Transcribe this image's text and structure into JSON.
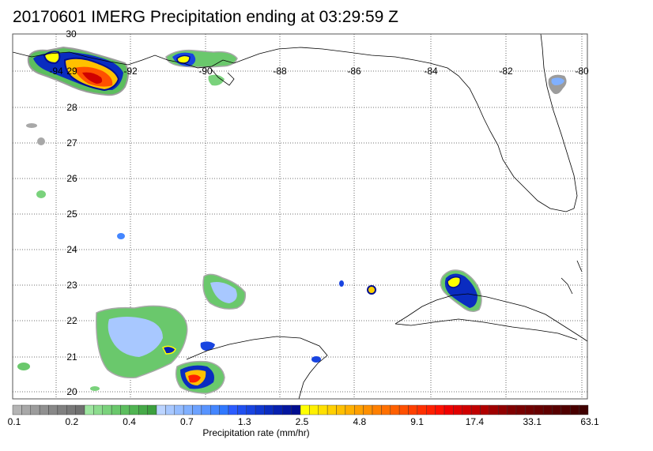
{
  "title": "20170601 IMERG Precipitation ending at 03:29:59 Z",
  "map": {
    "lon_labels": [
      "-94",
      "-92",
      "-90",
      "-88",
      "-86",
      "-84",
      "-82",
      "-80"
    ],
    "lat_labels": [
      "30",
      "29",
      "28",
      "27",
      "26",
      "25",
      "24",
      "23",
      "22",
      "21",
      "20"
    ],
    "lon_range": [
      -94.8,
      -79.8
    ],
    "lat_range": [
      19.8,
      30.0
    ],
    "grid": true
  },
  "colorbar": {
    "title": "Precipitation rate (mm/hr)",
    "labels": [
      "0.1",
      "0.2",
      "0.4",
      "0.7",
      "1.3",
      "2.5",
      "4.8",
      "9.1",
      "17.4",
      "33.1",
      "63.1"
    ],
    "colors": [
      "#b4b4b4",
      "#a8a8a8",
      "#9c9c9c",
      "#909090",
      "#888888",
      "#808080",
      "#787878",
      "#707070",
      "#9ee6a0",
      "#8cdc8e",
      "#7ad27c",
      "#6ac86c",
      "#5cbe5e",
      "#50b452",
      "#46aa48",
      "#3ca03e",
      "#bcd4ff",
      "#a8c8ff",
      "#94bcff",
      "#80b0ff",
      "#6ca2ff",
      "#5894ff",
      "#4486ff",
      "#3078ff",
      "#2c5cff",
      "#2050f0",
      "#1844e0",
      "#1038d0",
      "#0a2cc0",
      "#0620b0",
      "#0316a0",
      "#000e90",
      "#ffff00",
      "#fff000",
      "#ffe000",
      "#ffd000",
      "#ffc000",
      "#ffb000",
      "#ffa000",
      "#ff9000",
      "#ff8000",
      "#ff7000",
      "#ff6000",
      "#ff5000",
      "#ff4000",
      "#ff3000",
      "#ff2000",
      "#ff1000",
      "#f00000",
      "#e00000",
      "#d00000",
      "#c00000",
      "#b00000",
      "#a00000",
      "#900000",
      "#800000",
      "#780000",
      "#700000",
      "#680000",
      "#600000",
      "#580000",
      "#500000",
      "#480000",
      "#400000"
    ]
  }
}
